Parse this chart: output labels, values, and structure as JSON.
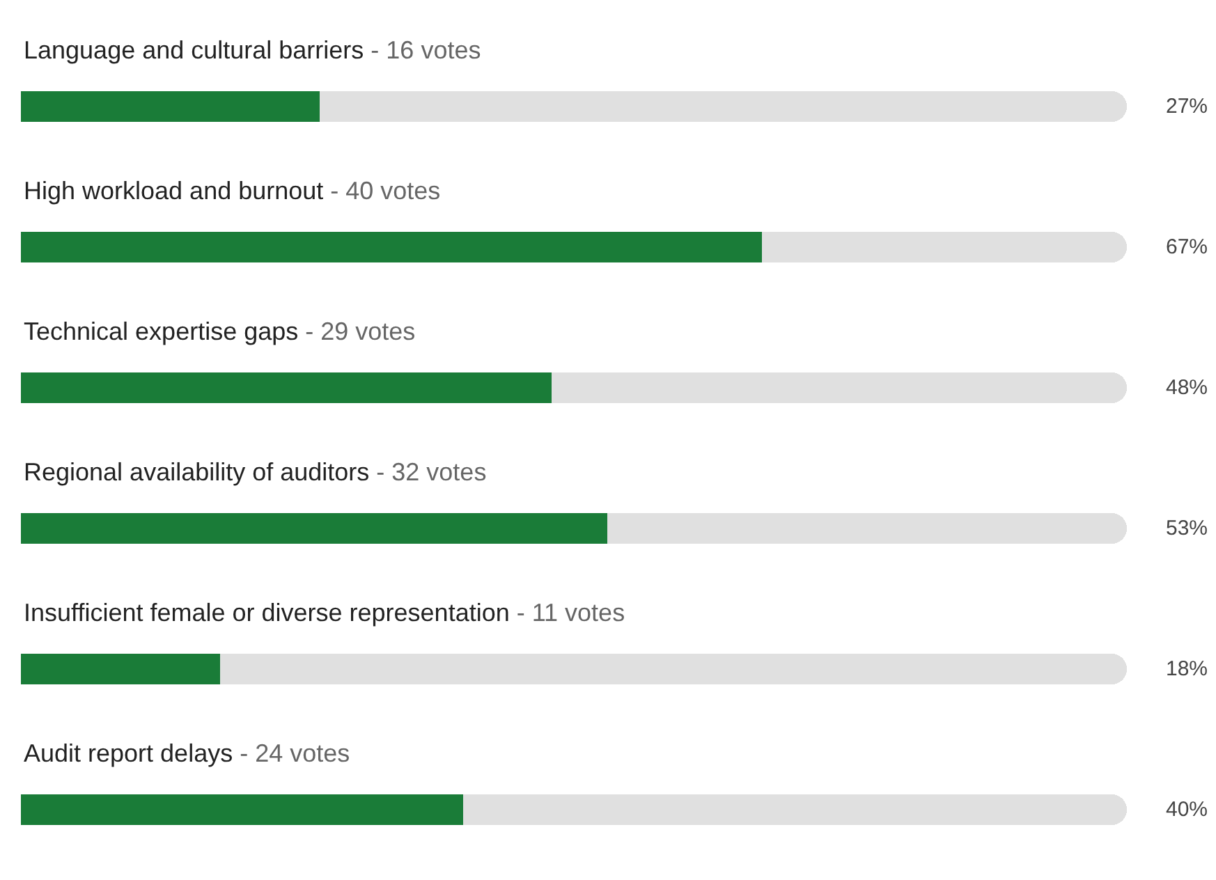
{
  "chart_data": {
    "type": "bar",
    "orientation": "horizontal",
    "categories": [
      "Language and cultural barriers - 16 votes",
      "High workload and burnout - 40 votes",
      "Technical expertise gaps - 29 votes",
      "Regional availability of auditors - 32 votes",
      "Insufficient female or diverse representation - 11 votes",
      "Audit report delays - 24 votes"
    ],
    "series": [
      {
        "color": "#1a7c38",
        "values": [
          27,
          67,
          48,
          53,
          18,
          40
        ],
        "value_labels": [
          "27%",
          "67%",
          "48%",
          "53%",
          "18%",
          "40%"
        ]
      },
      {
        "color": "#e0e0e0",
        "values": [
          73,
          33,
          52,
          47,
          82,
          60
        ]
      }
    ],
    "stacked": true,
    "xlim": [
      0,
      100
    ]
  }
}
